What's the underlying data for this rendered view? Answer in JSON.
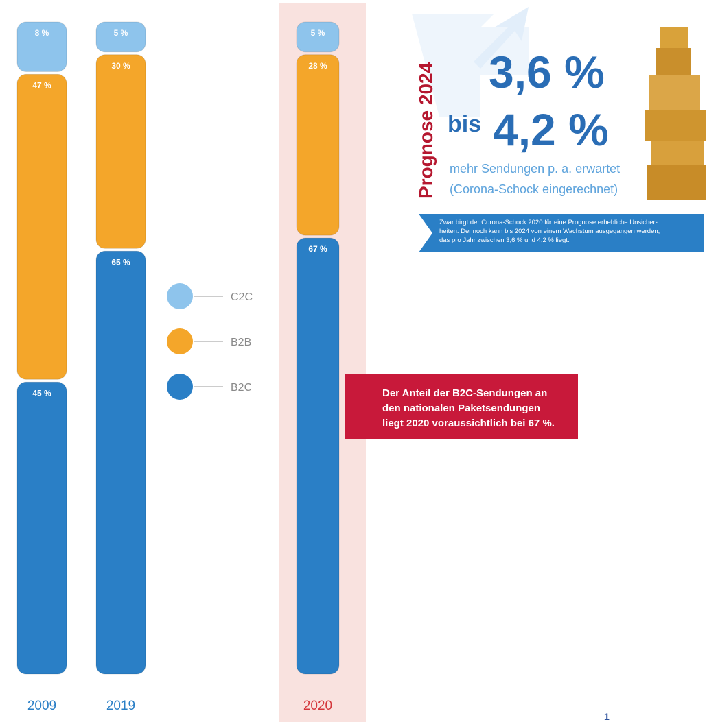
{
  "chart_data": {
    "type": "stacked_bar",
    "categories": [
      "2009",
      "2019",
      "2020"
    ],
    "series": [
      {
        "name": "B2C",
        "color": "#2a7fc6",
        "values": [
          45,
          65,
          67
        ],
        "value_labels": [
          "45 %",
          "65 %",
          "67 %"
        ]
      },
      {
        "name": "B2B",
        "color": "#f4a62a",
        "values": [
          47,
          30,
          28
        ],
        "value_labels": [
          "47 %",
          "30 %",
          "28 %"
        ]
      },
      {
        "name": "C2C",
        "color": "#8ec4ec",
        "values": [
          8,
          5,
          5
        ],
        "value_labels": [
          "8 %",
          "5 %",
          "5 %"
        ]
      }
    ]
  },
  "annotation": {
    "lines": [
      "Der Anteil der B2C-Sendungen an",
      "den nationalen Paketsendungen",
      "liegt 2020 voraussichtlich bei 67 %."
    ]
  },
  "forecast": {
    "title": "Prognose 2024",
    "low": "3,6 %",
    "connector": "bis",
    "high": "4,2 %",
    "caption": [
      "mehr Sendungen p. a. erwartet",
      "(Corona-Schock eingerechnet)"
    ],
    "note": [
      "Zwar birgt der Corona-Schock 2020 für eine Prognose erhebliche Unsicher-",
      "heiten. Dennoch kann bis 2024 von einem Wachstum ausgegangen werden,",
      "das pro Jahr zwischen 3,6 % und 4,2 % liegt."
    ]
  },
  "page_number": "1"
}
